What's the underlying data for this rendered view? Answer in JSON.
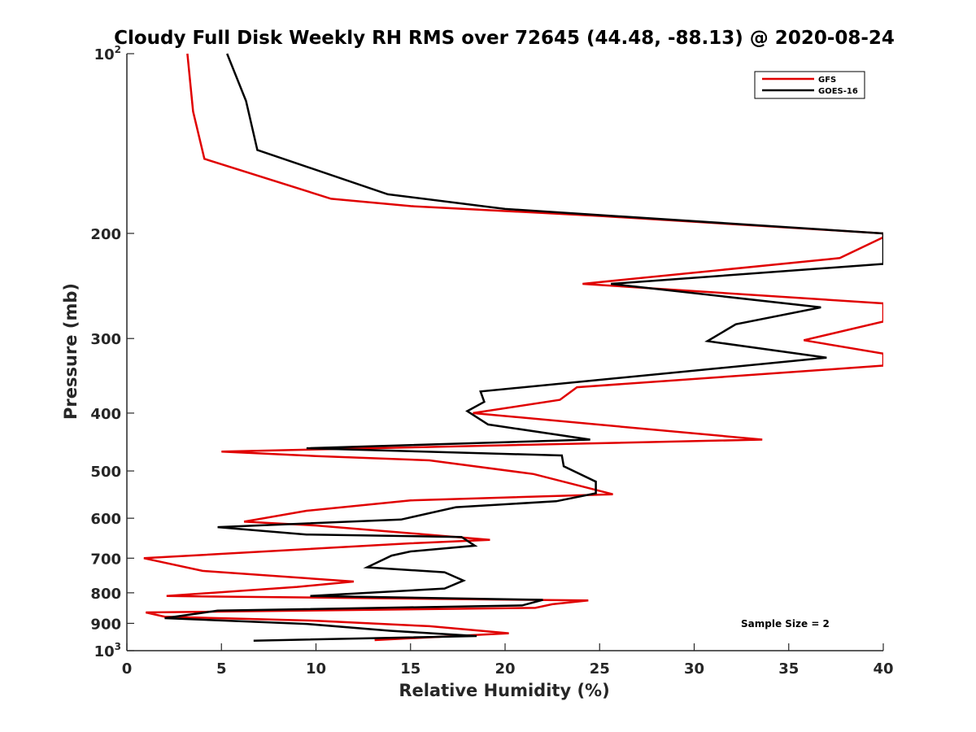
{
  "chart_data": {
    "type": "line",
    "title": "Cloudy Full Disk Weekly RH RMS over 72645 (44.48, -88.13) @ 2020-08-24",
    "xlabel": "Relative Humidity (%)",
    "ylabel": "Pressure (mb)",
    "xlim": [
      0,
      40
    ],
    "ylim": [
      100,
      1000
    ],
    "y_scale": "log",
    "y_reversed": true,
    "grid": false,
    "legend_position": "top-right",
    "xticks": [
      0,
      5,
      10,
      15,
      20,
      25,
      30,
      35,
      40
    ],
    "xtick_labels": [
      "0",
      "5",
      "10",
      "15",
      "20",
      "25",
      "30",
      "35",
      "40"
    ],
    "yticks": [
      100,
      200,
      300,
      400,
      500,
      600,
      700,
      800,
      900,
      1000
    ],
    "ytick_labels": [
      {
        "base": "10",
        "sup": "2"
      },
      {
        "base": "200",
        "sup": ""
      },
      {
        "base": "300",
        "sup": ""
      },
      {
        "base": "400",
        "sup": ""
      },
      {
        "base": "500",
        "sup": ""
      },
      {
        "base": "600",
        "sup": ""
      },
      {
        "base": "700",
        "sup": ""
      },
      {
        "base": "800",
        "sup": ""
      },
      {
        "base": "900",
        "sup": ""
      },
      {
        "base": "10",
        "sup": "3"
      }
    ],
    "series": [
      {
        "name": "GFS",
        "color": "#e00000",
        "points": [
          [
            3.2,
            100
          ],
          [
            3.5,
            125
          ],
          [
            4.1,
            150
          ],
          [
            10.8,
            175
          ],
          [
            15,
            180
          ],
          [
            25,
            187
          ],
          [
            40,
            200
          ],
          [
            40,
            203
          ],
          [
            37.7,
            220
          ],
          [
            24.1,
            243
          ],
          [
            40,
            262
          ],
          [
            40,
            281
          ],
          [
            35.8,
            302
          ],
          [
            40,
            318
          ],
          [
            40,
            333
          ],
          [
            23.8,
            362
          ],
          [
            22.9,
            380
          ],
          [
            18.3,
            400
          ],
          [
            33.6,
            443
          ],
          [
            5,
            464
          ],
          [
            10,
            472
          ],
          [
            16,
            480
          ],
          [
            21.5,
            506
          ],
          [
            25.7,
            547
          ],
          [
            15,
            560
          ],
          [
            9.5,
            583
          ],
          [
            6.2,
            608
          ],
          [
            10,
            617
          ],
          [
            19.2,
            652
          ],
          [
            15,
            661
          ],
          [
            0.9,
            700
          ],
          [
            4,
            735
          ],
          [
            12,
            766
          ],
          [
            9,
            782
          ],
          [
            2.1,
            810
          ],
          [
            24.4,
            824
          ],
          [
            22.5,
            836
          ],
          [
            21.6,
            848
          ],
          [
            1,
            863
          ],
          [
            2,
            877
          ],
          [
            10,
            891
          ],
          [
            16,
            910
          ],
          [
            20.2,
            935
          ],
          [
            13.1,
            960
          ]
        ]
      },
      {
        "name": "GOES-16",
        "color": "#000000",
        "points": [
          [
            5.3,
            100
          ],
          [
            6.3,
            120
          ],
          [
            6.9,
            145
          ],
          [
            13.8,
            172
          ],
          [
            20,
            182
          ],
          [
            40,
            200
          ],
          [
            40,
            225
          ],
          [
            25.6,
            243
          ],
          [
            36.7,
            266
          ],
          [
            32.2,
            284
          ],
          [
            30.7,
            303
          ],
          [
            37,
            323
          ],
          [
            18.7,
            368
          ],
          [
            18.9,
            383
          ],
          [
            18,
            397
          ],
          [
            19.1,
            418
          ],
          [
            24.5,
            443
          ],
          [
            9.5,
            458
          ],
          [
            23,
            471
          ],
          [
            23.1,
            491
          ],
          [
            24.8,
            521
          ],
          [
            24.8,
            545
          ],
          [
            22.7,
            562
          ],
          [
            17.4,
            575
          ],
          [
            14.5,
            603
          ],
          [
            4.8,
            621
          ],
          [
            9.5,
            639
          ],
          [
            17.7,
            645
          ],
          [
            18.4,
            667
          ],
          [
            15,
            682
          ],
          [
            14,
            693
          ],
          [
            12.7,
            725
          ],
          [
            16.8,
            739
          ],
          [
            17.8,
            763
          ],
          [
            16.8,
            787
          ],
          [
            9.7,
            810
          ],
          [
            22,
            822
          ],
          [
            20.9,
            840
          ],
          [
            4.8,
            857
          ],
          [
            2,
            882
          ],
          [
            9.5,
            902
          ],
          [
            13.9,
            926
          ],
          [
            18.5,
            945
          ],
          [
            6.7,
            962
          ]
        ]
      }
    ],
    "annotation": "Sample Size = 2"
  }
}
